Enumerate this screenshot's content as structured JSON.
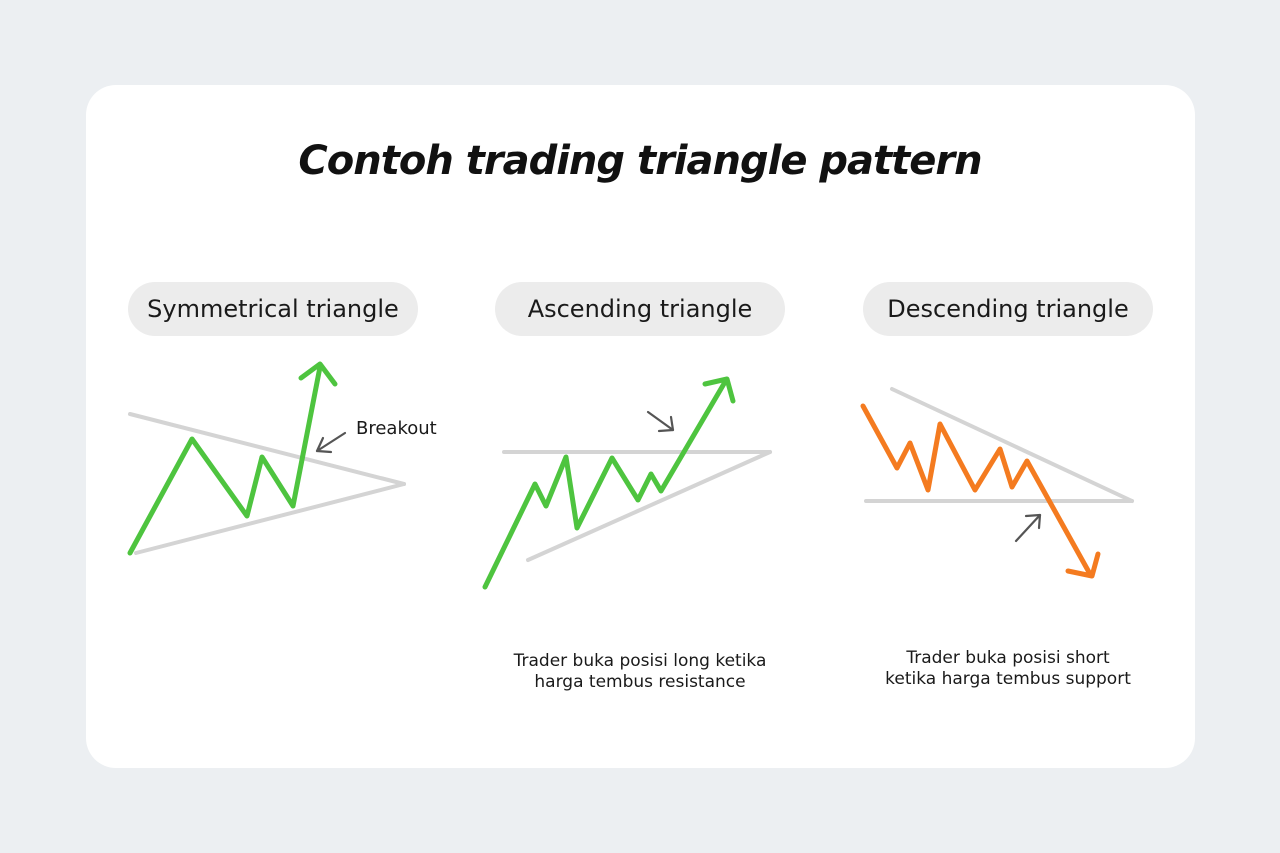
{
  "title": "Contoh trading triangle pattern",
  "panels": [
    {
      "label": "Symmetrical triangle",
      "annotation": "Breakout",
      "price_color": "#4ec43f"
    },
    {
      "label": "Ascending triangle",
      "note_lines": [
        "Trader buka posisi long ketika",
        "harga tembus resistance"
      ],
      "price_color": "#4ec43f"
    },
    {
      "label": "Descending triangle",
      "note_lines": [
        "Trader buka posisi short",
        "ketika harga tembus support"
      ],
      "price_color": "#f47b20"
    }
  ],
  "colors": {
    "background": "#eceff2",
    "card": "#ffffff",
    "pill": "#ececec",
    "trendline": "#d4d4d4",
    "pointer": "#555555",
    "bullish": "#4ec43f",
    "bearish": "#f47b20"
  }
}
